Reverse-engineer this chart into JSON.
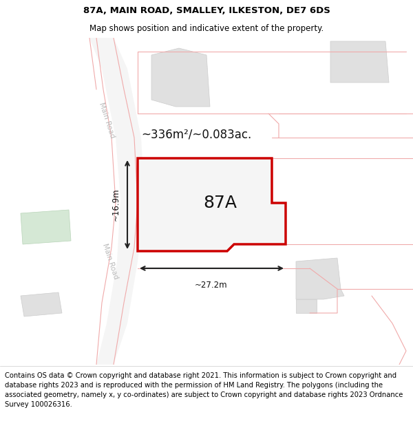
{
  "title": "87A, MAIN ROAD, SMALLEY, ILKESTON, DE7 6DS",
  "subtitle": "Map shows position and indicative extent of the property.",
  "footer": "Contains OS data © Crown copyright and database right 2021. This information is subject to Crown copyright and database rights 2023 and is reproduced with the permission of HM Land Registry. The polygons (including the associated geometry, namely x, y co-ordinates) are subject to Crown copyright and database rights 2023 Ordnance Survey 100026316.",
  "area_label": "~336m²/~0.083ac.",
  "property_label": "87A",
  "dim_width": "~27.2m",
  "dim_height": "~16.9m",
  "road_label1": "Main Road",
  "road_label2": "Main Road",
  "map_bg": "#ffffff",
  "building_fill": "#e0e0e0",
  "building_edge": "#cccccc",
  "green_fill": "#d5e8d5",
  "pink_line": "#f0aaaa",
  "highlight_edge": "#cc0000",
  "highlight_fill": "#f5f5f5",
  "dim_color": "#222222",
  "road_text_color": "#bbbbbb",
  "label_color": "#111111",
  "title_fontsize": 9.5,
  "subtitle_fontsize": 8.5,
  "footer_fontsize": 7.2,
  "area_fontsize": 12,
  "property_label_fontsize": 18,
  "dim_fontsize": 8.5,
  "road_fontsize": 7.5
}
